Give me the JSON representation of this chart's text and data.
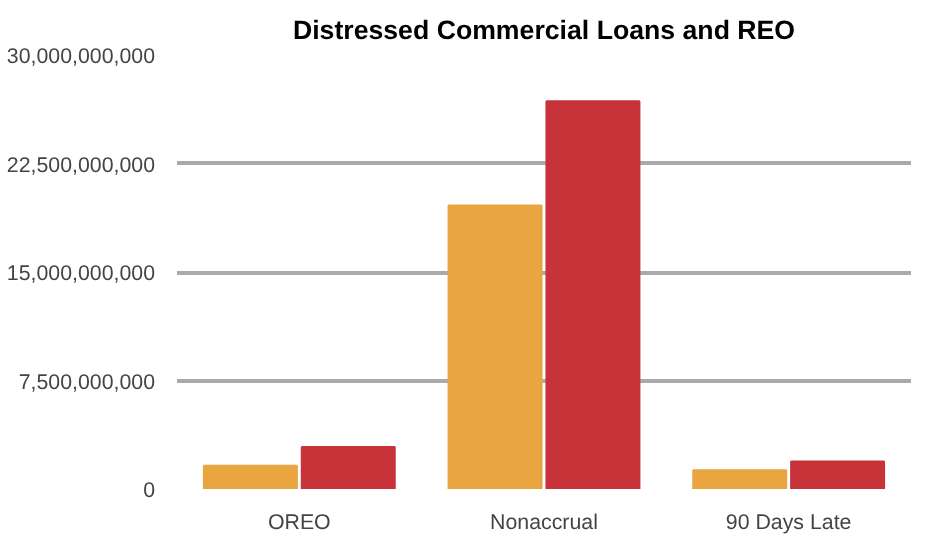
{
  "chart_data": {
    "type": "bar",
    "title": "Distressed Commercial Loans and REO",
    "categories": [
      "OREO",
      "Nonaccrual",
      "90 Days Late"
    ],
    "series": [
      {
        "color": "#e8a540",
        "values": [
          1600000000,
          19600000000,
          1300000000
        ]
      },
      {
        "color": "#c8333a",
        "values": [
          2900000000,
          26800000000,
          1900000000
        ]
      }
    ],
    "ylim": [
      0,
      30000000000
    ],
    "yticks": [
      {
        "value": 0,
        "label": "0"
      },
      {
        "value": 7500000000,
        "label": "7,500,000,000"
      },
      {
        "value": 15000000000,
        "label": "15,000,000,000"
      },
      {
        "value": 22500000000,
        "label": "22,500,000,000"
      },
      {
        "value": 30000000000,
        "label": "30,000,000,000"
      }
    ],
    "grid": "y"
  }
}
